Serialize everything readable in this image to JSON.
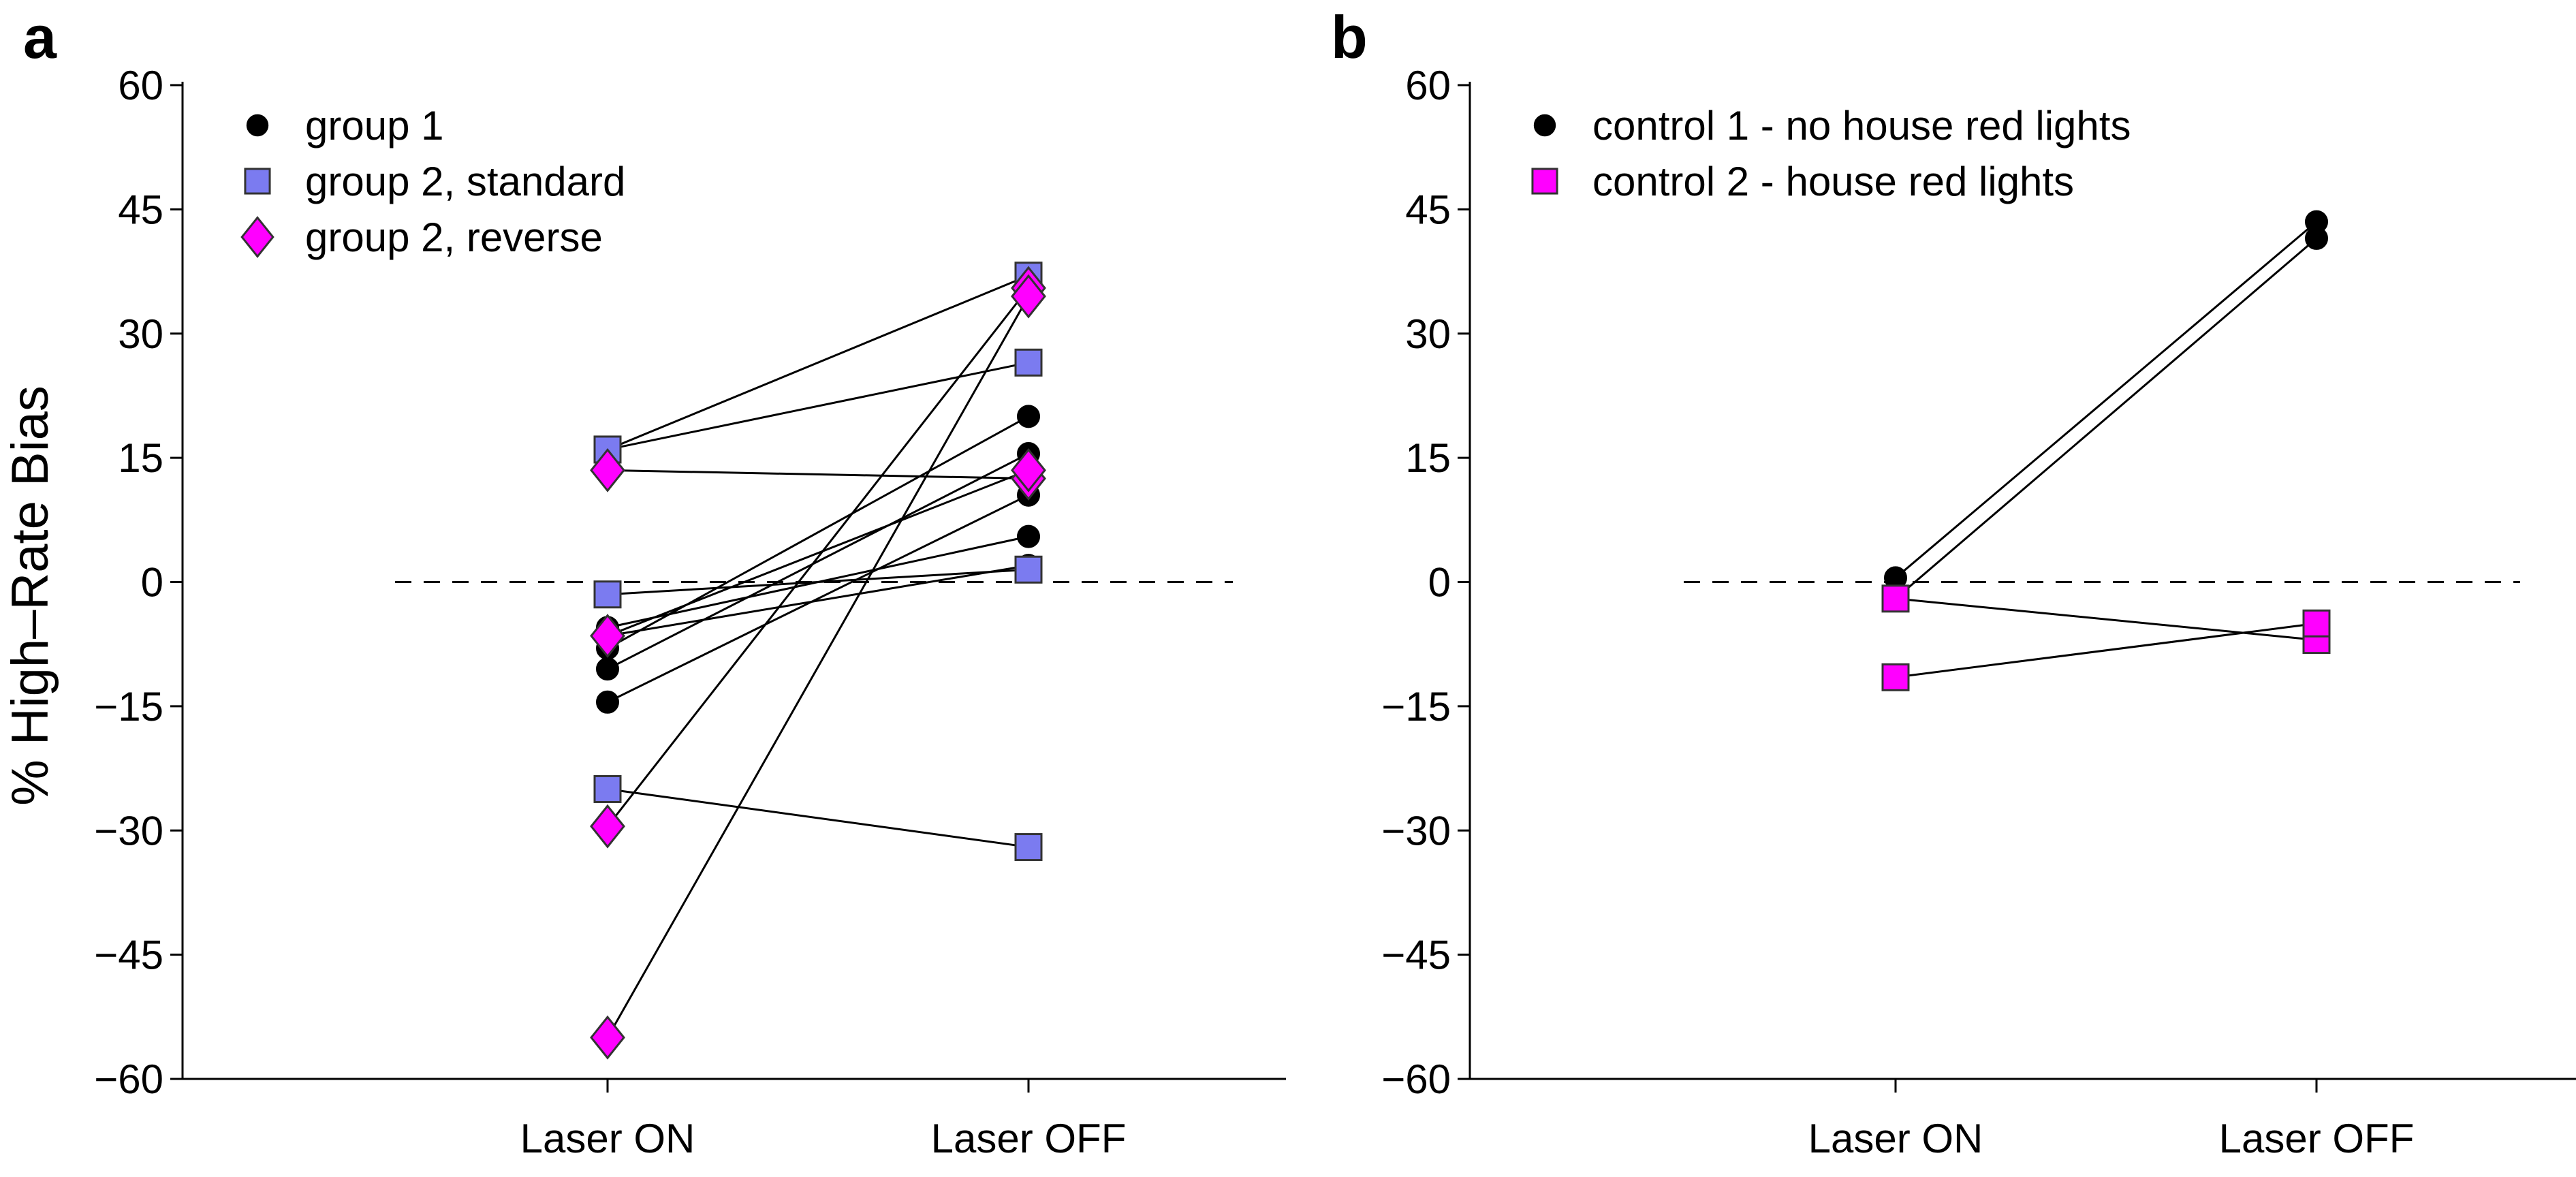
{
  "chart_data": [
    {
      "panel": "a",
      "type": "line",
      "categories": [
        "Laser ON",
        "Laser OFF"
      ],
      "ylabel": "% High–Rate Bias",
      "yticks": [
        "60",
        "45",
        "30",
        "15",
        "0",
        "−15",
        "−30",
        "−45",
        "−60"
      ],
      "ylim": [
        -60,
        60
      ],
      "reference_line": 0,
      "legend_position": "top-left",
      "legend": [
        {
          "label": "group 1",
          "marker": "circle",
          "color": "#000000"
        },
        {
          "label": "group 2, standard",
          "marker": "square",
          "color": "#7b7bf0"
        },
        {
          "label": "group 2, reverse",
          "marker": "diamond",
          "color": "#ff00ff"
        }
      ],
      "series": [
        {
          "group": "group 1",
          "values": [
            -8,
            20
          ]
        },
        {
          "group": "group 1",
          "values": [
            -10.5,
            15.5
          ]
        },
        {
          "group": "group 1",
          "values": [
            -14.5,
            10.5
          ]
        },
        {
          "group": "group 1",
          "values": [
            -5.5,
            5.5
          ]
        },
        {
          "group": "group 1",
          "values": [
            -6.5,
            2
          ]
        },
        {
          "group": "group 2, standard",
          "values": [
            16,
            37
          ]
        },
        {
          "group": "group 2, standard",
          "values": [
            16,
            26.5
          ]
        },
        {
          "group": "group 2, standard",
          "values": [
            -1.5,
            1.5
          ]
        },
        {
          "group": "group 2, standard",
          "values": [
            -25,
            -32
          ]
        },
        {
          "group": "group 2, reverse",
          "values": [
            13.5,
            12.5
          ]
        },
        {
          "group": "group 2, reverse",
          "values": [
            -6.5,
            13.5
          ]
        },
        {
          "group": "group 2, reverse",
          "values": [
            -29.5,
            35.5
          ]
        },
        {
          "group": "group 2, reverse",
          "values": [
            -55,
            34.5
          ]
        }
      ]
    },
    {
      "panel": "b",
      "type": "line",
      "categories": [
        "Laser ON",
        "Laser OFF"
      ],
      "ylabel": "",
      "yticks": [
        "60",
        "45",
        "30",
        "15",
        "0",
        "−15",
        "−30",
        "−45",
        "−60"
      ],
      "ylim": [
        -60,
        60
      ],
      "reference_line": 0,
      "legend_position": "top-left",
      "legend": [
        {
          "label": "control 1 - no house red lights",
          "marker": "circle",
          "color": "#000000"
        },
        {
          "label": "control 2 - house red lights",
          "marker": "square",
          "color": "#ff00ff"
        }
      ],
      "series": [
        {
          "group": "control 1 - no house red lights",
          "values": [
            0.5,
            43.5
          ]
        },
        {
          "group": "control 1 - no house red lights",
          "values": [
            -2,
            41.5
          ]
        },
        {
          "group": "control 2 - house red lights",
          "values": [
            -2,
            -7
          ]
        },
        {
          "group": "control 2 - house red lights",
          "values": [
            -11.5,
            -5
          ]
        }
      ]
    }
  ]
}
